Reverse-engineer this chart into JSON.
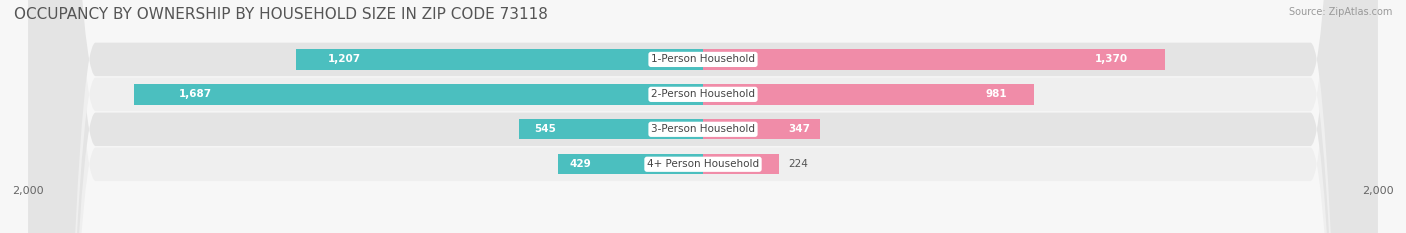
{
  "title": "OCCUPANCY BY OWNERSHIP BY HOUSEHOLD SIZE IN ZIP CODE 73118",
  "source": "Source: ZipAtlas.com",
  "categories": [
    "1-Person Household",
    "2-Person Household",
    "3-Person Household",
    "4+ Person Household"
  ],
  "owner_values": [
    1207,
    1687,
    545,
    429
  ],
  "renter_values": [
    1370,
    981,
    347,
    224
  ],
  "max_value": 2000,
  "owner_color": "#4BBFBF",
  "renter_color": "#F08CA8",
  "row_bg_light": "#EFEFEF",
  "row_bg_dark": "#E4E4E4",
  "fig_bg": "#F7F7F7",
  "axis_label": "2,000",
  "title_fontsize": 11,
  "bar_height": 0.58,
  "figsize": [
    14.06,
    2.33
  ],
  "dpi": 100
}
